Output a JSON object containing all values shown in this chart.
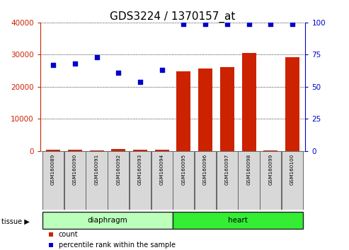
{
  "title": "GDS3224 / 1370157_at",
  "samples": [
    "GSM160089",
    "GSM160090",
    "GSM160091",
    "GSM160092",
    "GSM160093",
    "GSM160094",
    "GSM160095",
    "GSM160096",
    "GSM160097",
    "GSM160098",
    "GSM160099",
    "GSM160100"
  ],
  "counts": [
    350,
    450,
    180,
    550,
    380,
    420,
    24800,
    25600,
    26200,
    30500,
    300,
    29200
  ],
  "percentiles": [
    67,
    68,
    73,
    61,
    54,
    63,
    99,
    99,
    99,
    99,
    99,
    99
  ],
  "bar_color": "#cc2200",
  "dot_color": "#0000cc",
  "tissue_groups": [
    {
      "label": "diaphragm",
      "start": 0,
      "end": 5,
      "color": "#bbffbb"
    },
    {
      "label": "heart",
      "start": 6,
      "end": 11,
      "color": "#33ee33"
    }
  ],
  "ylim_left": [
    0,
    40000
  ],
  "ylim_right": [
    0,
    100
  ],
  "yticks_left": [
    0,
    10000,
    20000,
    30000,
    40000
  ],
  "yticks_right": [
    0,
    25,
    50,
    75,
    100
  ],
  "background_color": "#ffffff",
  "title_fontsize": 11,
  "tick_fontsize": 7.5,
  "legend_count_color": "#cc2200",
  "legend_pct_color": "#0000cc",
  "tissue_label": "tissue ▶"
}
